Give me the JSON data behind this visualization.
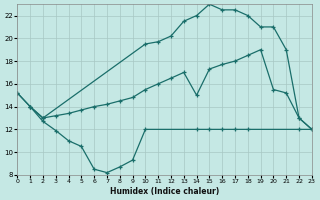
{
  "xlabel": "Humidex (Indice chaleur)",
  "bg_color": "#c5e8e4",
  "grid_color": "#a8c8c4",
  "line_color": "#1a6e6a",
  "xlim": [
    0,
    23
  ],
  "ylim": [
    8,
    23
  ],
  "xtick_vals": [
    0,
    1,
    2,
    3,
    4,
    5,
    6,
    7,
    8,
    9,
    10,
    11,
    12,
    13,
    14,
    15,
    16,
    17,
    18,
    19,
    20,
    21,
    22,
    23
  ],
  "ytick_vals": [
    8,
    10,
    12,
    14,
    16,
    18,
    20,
    22
  ],
  "line1_x": [
    0,
    1,
    2,
    3,
    4,
    5,
    6,
    7,
    8,
    9,
    10,
    14,
    15,
    16,
    17,
    18,
    22,
    23
  ],
  "line1_y": [
    15.2,
    14.0,
    12.7,
    11.9,
    11.0,
    10.5,
    8.5,
    8.2,
    8.7,
    9.3,
    12.0,
    12.0,
    12.0,
    12.0,
    12.0,
    12.0,
    12.0,
    12.0
  ],
  "line2_x": [
    1,
    2,
    3,
    4,
    5,
    6,
    7,
    8,
    9,
    10,
    11,
    12,
    13,
    14,
    15,
    16,
    17,
    18,
    19,
    20,
    21,
    22,
    23
  ],
  "line2_y": [
    14.0,
    13.0,
    13.2,
    13.4,
    13.7,
    14.0,
    14.2,
    14.5,
    14.8,
    15.5,
    16.0,
    16.5,
    17.0,
    15.0,
    17.3,
    17.7,
    18.0,
    18.5,
    19.0,
    15.5,
    15.2,
    13.0,
    12.0
  ],
  "line3_x": [
    0,
    1,
    2,
    10,
    11,
    12,
    13,
    14,
    15,
    16,
    17,
    18,
    19,
    20,
    21,
    22,
    23
  ],
  "line3_y": [
    15.2,
    14.0,
    13.0,
    19.5,
    19.7,
    20.2,
    21.5,
    22.0,
    23.0,
    22.5,
    22.5,
    22.0,
    21.0,
    21.0,
    19.0,
    13.0,
    12.0
  ]
}
